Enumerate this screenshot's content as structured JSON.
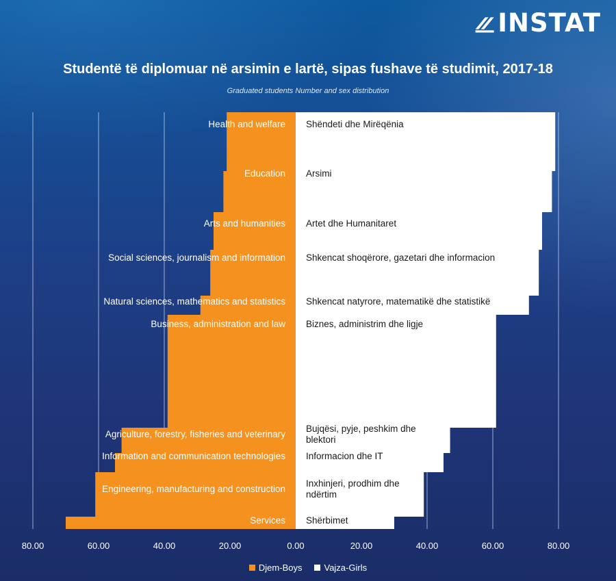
{
  "logo": {
    "text": "INSTAT"
  },
  "colors": {
    "boys": "#f5911e",
    "girls": "#ffffff",
    "grid": "#c9d6ea"
  },
  "chart_data": {
    "type": "bar",
    "orientation": "horizontal-butterfly",
    "title": "Studentë të diplomuar në arsimin e lartë, sipas fushave të studimit, 2017-18",
    "subtitle": "Graduated students Number and sex distribution",
    "categories_en": [
      "Health and welfare",
      "Education",
      "Arts and humanities",
      "Social sciences, journalism and information",
      "Natural sciences, mathematics and statistics",
      "Business, administration and law",
      "Agriculture, forestry, fisheries and veterinary",
      "Information and communication technologies",
      "Engineering, manufacturing and construction",
      "Services"
    ],
    "categories_sq": [
      "Shëndeti dhe Mirëqënia",
      "Arsimi",
      "Artet dhe Humanitaret",
      "Shkencat shoqërore, gazetari dhe informacion",
      "Shkencat natyrore, matematikë dhe statistikë",
      "Biznes, administrim dhe ligje",
      "Bujqësi, pyje, peshkim dhe blektori",
      "Informacion dhe IT",
      "Inxhinjeri, prodhim dhe ndërtim",
      "Shërbimet"
    ],
    "series": [
      {
        "name": "Djem-Boys",
        "values": [
          21,
          22,
          25,
          26,
          29,
          39,
          53,
          55,
          61,
          70
        ]
      },
      {
        "name": "Vajza-Girls",
        "values": [
          79,
          78,
          75,
          74,
          71,
          61,
          47,
          45,
          39,
          30
        ]
      }
    ],
    "xlim": [
      -80,
      80
    ],
    "x_ticks": [
      "80.00",
      "60.00",
      "40.00",
      "20.00",
      "0.00",
      "20.00",
      "40.00",
      "60.00",
      "80.00"
    ],
    "grid": true,
    "legend": "bottom-center"
  }
}
